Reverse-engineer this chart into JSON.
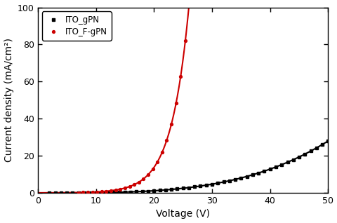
{
  "title": "",
  "xlabel": "Voltage (V)",
  "ylabel": "Current density (mA/cm²)",
  "xlim": [
    0,
    50
  ],
  "ylim": [
    0,
    100
  ],
  "xticks": [
    0,
    10,
    20,
    30,
    40,
    50
  ],
  "yticks": [
    0,
    20,
    40,
    60,
    80,
    100
  ],
  "black_line": {
    "label": "ITO_gPN",
    "color": "#000000",
    "linewidth": 1.5,
    "marker": "s",
    "markersize": 2.8
  },
  "red_line": {
    "label": "ITO_F-gPN",
    "color": "#cc0000",
    "linewidth": 1.5,
    "marker": "o",
    "markersize": 2.8
  },
  "legend_loc": "upper left",
  "figsize": [
    4.81,
    3.18
  ],
  "dpi": 100,
  "background_color": "#ffffff",
  "black_coeff": 1.2e-05,
  "black_exp": 3.5,
  "red_A": 5e-05,
  "red_B": 0.68,
  "red_V0": 0.0
}
